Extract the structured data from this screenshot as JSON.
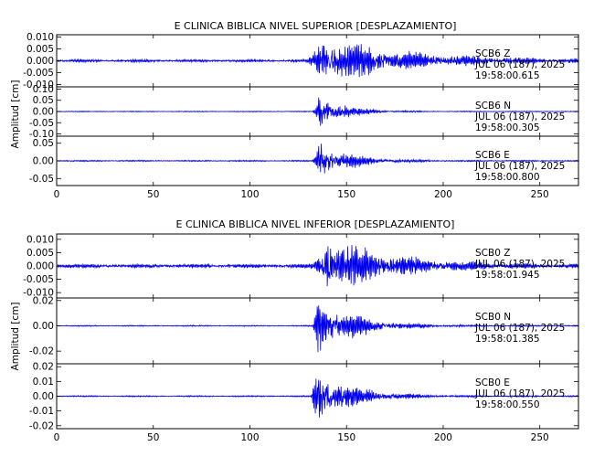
{
  "colors": {
    "trace": "#0000ee",
    "axes": "#000000",
    "background": "#ffffff"
  },
  "chart_data": [
    {
      "type": "line",
      "title": "E CLINICA BIBLICA NIVEL SUPERIOR [DESPLAZAMIENTO]",
      "ylabel": "Amplitud [cm]",
      "xlim": [
        0,
        270
      ],
      "xticks": [
        0,
        50,
        100,
        150,
        200,
        250
      ],
      "panels": [
        {
          "component": "SCB6 Z",
          "station": "SCB6",
          "channel": "Z",
          "date": "JUL 06 (187), 2025",
          "time": "19:58:00.615",
          "ylim": [
            -0.011,
            0.011
          ],
          "yticks": [
            -0.01,
            -0.005,
            0.0,
            0.005,
            0.01
          ],
          "ytick_labels": [
            "-0.010",
            "-0.005",
            "0.000",
            "0.005",
            "0.010"
          ],
          "envelope": {
            "noise": 0.0006,
            "onset": 127,
            "peak_time": 138,
            "peak": 0.011,
            "decay": 40
          }
        },
        {
          "component": "SCB6 N",
          "station": "SCB6",
          "channel": "N",
          "date": "JUL 06 (187), 2025",
          "time": "19:58:00.305",
          "ylim": [
            -0.11,
            0.11
          ],
          "yticks": [
            -0.1,
            -0.05,
            0.0,
            0.05,
            0.1
          ],
          "ytick_labels": [
            "-0.10",
            "-0.05",
            "0.00",
            "0.05",
            "0.10"
          ],
          "envelope": {
            "noise": 0.002,
            "onset": 132,
            "peak_time": 136,
            "peak": 0.095,
            "decay": 12
          }
        },
        {
          "component": "SCB6 E",
          "station": "SCB6",
          "channel": "E",
          "date": "JUL 06 (187), 2025",
          "time": "19:58:00.800",
          "ylim": [
            -0.07,
            0.07
          ],
          "yticks": [
            -0.05,
            0.0,
            0.05
          ],
          "ytick_labels": [
            "-0.05",
            "0.00",
            "0.05"
          ],
          "envelope": {
            "noise": 0.002,
            "onset": 132,
            "peak_time": 136,
            "peak": 0.065,
            "decay": 14
          }
        }
      ]
    },
    {
      "type": "line",
      "title": "E CLINICA BIBLICA NIVEL INFERIOR [DESPLAZAMIENTO]",
      "ylabel": "Amplitud [cm]",
      "xlim": [
        0,
        270
      ],
      "xticks": [
        0,
        50,
        100,
        150,
        200,
        250
      ],
      "panels": [
        {
          "component": "SCB0 Z",
          "station": "SCB0",
          "channel": "Z",
          "date": "JUL 06 (187), 2025",
          "time": "19:58:01.945",
          "ylim": [
            -0.012,
            0.012
          ],
          "yticks": [
            -0.01,
            -0.005,
            0.0,
            0.005,
            0.01
          ],
          "ytick_labels": [
            "-0.010",
            "-0.005",
            "0.000",
            "0.005",
            "0.010"
          ],
          "envelope": {
            "noise": 0.0008,
            "onset": 130,
            "peak_time": 140,
            "peak": 0.012,
            "decay": 30
          }
        },
        {
          "component": "SCB0 N",
          "station": "SCB0",
          "channel": "N",
          "date": "JUL 06 (187), 2025",
          "time": "19:58:01.385",
          "ylim": [
            -0.03,
            0.022
          ],
          "yticks": [
            -0.02,
            0.0,
            0.02
          ],
          "ytick_labels": [
            "-0.02",
            "0.00",
            "0.02"
          ],
          "envelope": {
            "noise": 0.0005,
            "onset": 132,
            "peak_time": 135,
            "peak": 0.028,
            "decay": 18
          }
        },
        {
          "component": "SCB0 E",
          "station": "SCB0",
          "channel": "E",
          "date": "JUL 06 (187), 2025",
          "time": "19:58:00.550",
          "ylim": [
            -0.022,
            0.022
          ],
          "yticks": [
            -0.02,
            -0.01,
            0.0,
            0.01,
            0.02
          ],
          "ytick_labels": [
            "-0.02",
            "-0.01",
            "0.00",
            "0.01",
            "0.02"
          ],
          "envelope": {
            "noise": 0.0005,
            "onset": 131,
            "peak_time": 134,
            "peak": 0.021,
            "decay": 18
          }
        }
      ]
    }
  ]
}
